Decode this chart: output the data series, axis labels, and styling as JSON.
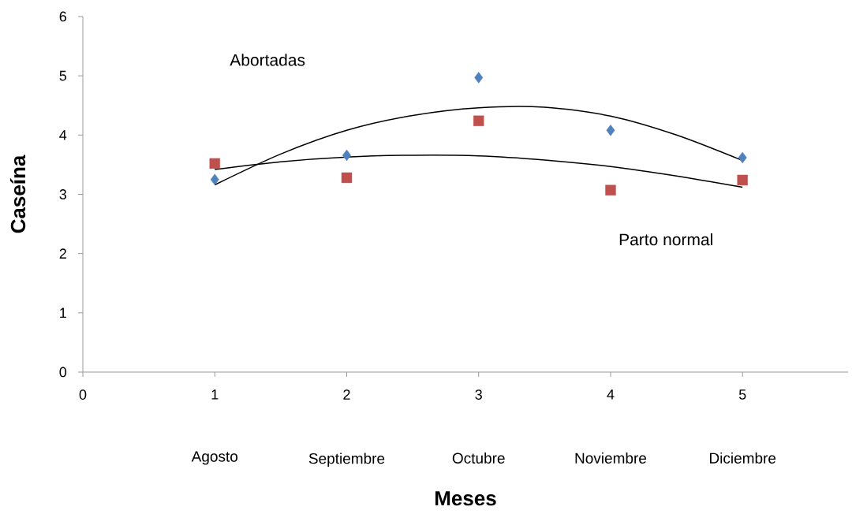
{
  "chart_data": {
    "type": "scatter",
    "xlabel": "Meses",
    "ylabel": "Caseína",
    "xlim": [
      0,
      5.8
    ],
    "ylim": [
      0,
      6
    ],
    "xticks": [
      0,
      1,
      2,
      3,
      4,
      5
    ],
    "yticks": [
      0,
      1,
      2,
      3,
      4,
      5,
      6
    ],
    "grid": false,
    "series": [
      {
        "marker": "diamond",
        "color": "#4f81bd",
        "x": [
          1,
          2,
          3,
          4,
          5
        ],
        "values": [
          3.25,
          3.66,
          4.97,
          4.08,
          3.62
        ]
      },
      {
        "marker": "square",
        "color": "#c0504d",
        "x": [
          1,
          2,
          3,
          4,
          5
        ],
        "values": [
          3.52,
          3.28,
          4.24,
          3.07,
          3.24
        ]
      },
      {
        "type": "line",
        "marker": "none",
        "color": "#000000",
        "x": [
          1,
          1.5,
          2,
          2.5,
          3,
          3.5,
          4,
          4.5,
          5
        ],
        "values": [
          3.16,
          3.68,
          4.08,
          4.33,
          4.46,
          4.47,
          4.32,
          4.0,
          3.57
        ]
      },
      {
        "type": "line",
        "marker": "none",
        "color": "#000000",
        "x": [
          1,
          1.5,
          2,
          2.5,
          3,
          3.5,
          4,
          4.5,
          5
        ],
        "values": [
          3.42,
          3.55,
          3.63,
          3.66,
          3.65,
          3.58,
          3.47,
          3.31,
          3.12
        ]
      }
    ],
    "annotations": [
      "Abortadas",
      "Parto normal",
      "Agosto",
      "Septiembre",
      "Octubre",
      "Noviembre",
      "Diciembre"
    ]
  }
}
